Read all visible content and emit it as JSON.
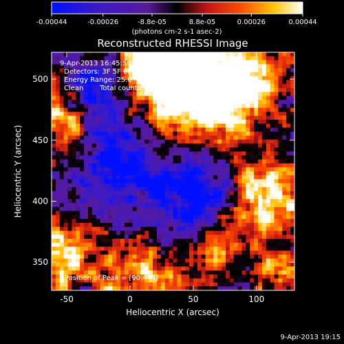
{
  "chart_data": {
    "type": "heatmap",
    "title": "Reconstructed RHESSI Image",
    "xlabel": "Heliocentric X (arcsec)",
    "ylabel": "Heliocentric Y (arcsec)",
    "xlim": [
      -62,
      130
    ],
    "ylim": [
      327,
      522
    ],
    "xticks": [
      -50,
      0,
      50,
      100
    ],
    "xtick_labels": [
      "-50",
      "0",
      "50",
      "100"
    ],
    "yticks": [
      350,
      400,
      450,
      500
    ],
    "ytick_labels": [
      "350",
      "400",
      "450",
      "500"
    ],
    "colormap": "blue-purple-red-yellow-white",
    "colorbar": {
      "range": [
        -0.00044,
        0.00044
      ],
      "tick_values": [
        -0.00044,
        -0.00026,
        -8.8e-05,
        8.8e-05,
        0.00026,
        0.00044
      ],
      "tick_labels": [
        "-0.00044",
        "-0.00026",
        "-8.8e-05",
        "8.8e-05",
        "0.00026",
        "0.00044"
      ],
      "units_label": "(photons cm-2 s-1 asec-2)"
    },
    "annotations": {
      "time_range": "9-Apr-2013 16:45:56.000 to 16:47:32.000",
      "detectors": "Detectors: 3F 5F 6F 7F 8F 9F, Att_0",
      "energy_range": "Energy Range: 25.0 - 50.0 keV",
      "algorithm": "Clean",
      "total_counts": "Total counts: 2.61E+03",
      "peak_position": "Position of Peak = [90,444]"
    },
    "peak": [
      90,
      444
    ]
  },
  "timestamp": "9-Apr-2013 19:15"
}
